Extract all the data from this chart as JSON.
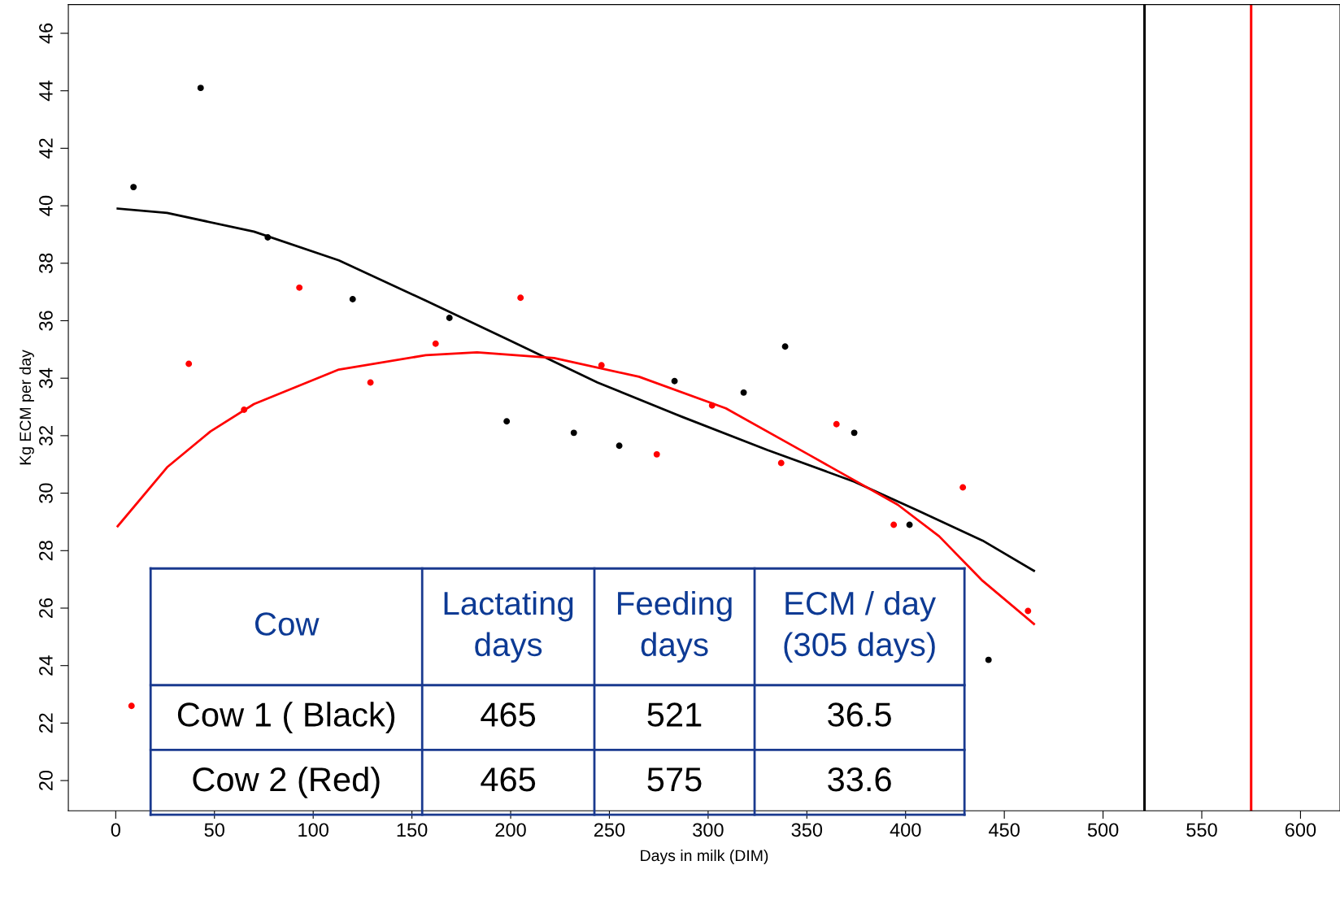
{
  "chart_data": {
    "type": "scatter",
    "xlabel": "Days in milk (DIM)",
    "ylabel": "Kg ECM per day",
    "xlim": [
      -24,
      620
    ],
    "ylim": [
      18.95,
      47
    ],
    "xticks": [
      0,
      50,
      100,
      150,
      200,
      250,
      300,
      350,
      400,
      450,
      500,
      550,
      600
    ],
    "yticks": [
      20,
      22,
      24,
      26,
      28,
      30,
      32,
      34,
      36,
      38,
      40,
      42,
      44,
      46
    ],
    "grid": false,
    "marker": "circle",
    "series": [
      {
        "color": "#000000",
        "x": [
          9,
          43,
          77,
          120,
          169,
          198,
          232,
          255,
          283,
          318,
          339,
          374,
          402,
          442
        ],
        "values": [
          40.65,
          44.1,
          38.9,
          36.75,
          36.1,
          32.5,
          32.1,
          31.65,
          33.9,
          33.5,
          35.1,
          32.1,
          28.9,
          24.2
        ]
      },
      {
        "color": "#ff0000",
        "x": [
          8,
          37,
          65,
          93,
          129,
          162,
          205,
          246,
          274,
          302,
          337,
          365,
          394,
          429,
          462
        ],
        "values": [
          22.6,
          34.5,
          32.9,
          37.15,
          33.85,
          35.2,
          36.8,
          34.45,
          31.35,
          33.05,
          31.05,
          32.4,
          28.9,
          30.2,
          25.9
        ]
      },
      {
        "type": "line",
        "color": "#000000",
        "marker": "none",
        "line_style": "solid",
        "x": [
          1,
          26,
          70,
          113,
          157,
          200,
          244,
          287,
          330,
          374,
          406,
          439,
          465
        ],
        "values": [
          39.9,
          39.75,
          39.1,
          38.1,
          36.7,
          35.3,
          33.85,
          32.65,
          31.5,
          30.4,
          29.4,
          28.35,
          27.3
        ]
      },
      {
        "type": "line",
        "color": "#ff0000",
        "marker": "none",
        "line_style": "solid",
        "x": [
          1,
          26,
          48,
          70,
          113,
          157,
          183,
          222,
          265,
          309,
          352,
          396,
          417,
          439,
          465
        ],
        "values": [
          28.85,
          30.9,
          32.15,
          33.1,
          34.3,
          34.8,
          34.9,
          34.7,
          34.05,
          32.95,
          31.3,
          29.6,
          28.5,
          26.95,
          25.45
        ]
      }
    ],
    "ref_lines": [
      {
        "axis": "x",
        "value": 521,
        "color": "#000000",
        "line_style": "solid"
      },
      {
        "axis": "x",
        "value": 575,
        "color": "#ff0000",
        "line_style": "solid"
      }
    ],
    "annotations": [
      "Cow",
      "Lactating\ndays",
      "Feeding\ndays",
      "ECM / day\n(305 days)",
      "Cow 1 ( Black)",
      "465",
      "521",
      "36.5",
      "Cow 2 (Red)",
      "465",
      "575",
      "33.6"
    ]
  }
}
